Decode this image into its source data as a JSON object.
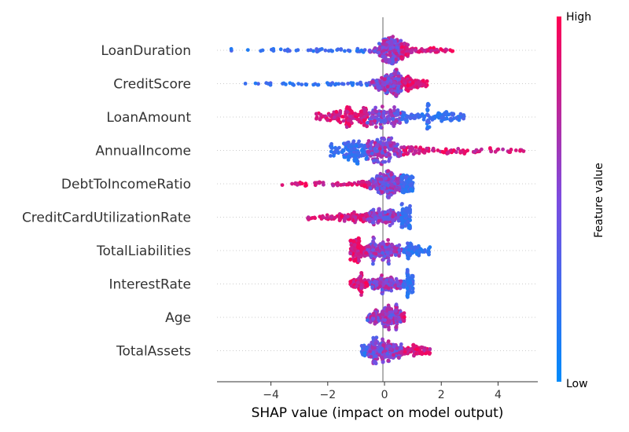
{
  "chart_data": {
    "type": "scatter",
    "subtype": "shap-beeswarm",
    "xlabel": "SHAP value (impact on model output)",
    "xlim": [
      -5.9,
      5.4
    ],
    "xticks": [
      -4,
      -2,
      0,
      2,
      4
    ],
    "xtick_labels": [
      "−4",
      "−2",
      "0",
      "2",
      "4"
    ],
    "colorbar": {
      "title": "Feature value",
      "high_label": "High",
      "low_label": "Low",
      "low_color": "#008bfb",
      "high_color": "#ff0052"
    },
    "features": [
      {
        "name": "LoanDuration",
        "min": -5.4,
        "max": 2.4,
        "low_side": "negative",
        "core": [
          -0.3,
          0.6
        ],
        "mode": 0.3
      },
      {
        "name": "CreditScore",
        "min": -4.9,
        "max": 1.5,
        "low_side": "negative",
        "core": [
          -0.2,
          0.8
        ],
        "mode": 0.3
      },
      {
        "name": "LoanAmount",
        "min": -2.4,
        "max": 2.8,
        "low_side": "positive",
        "core": [
          -1.2,
          1.5
        ],
        "mode": -0.5
      },
      {
        "name": "AnnualIncome",
        "min": -1.9,
        "max": 4.9,
        "low_side": "negative",
        "core": [
          -0.9,
          1.2
        ],
        "mode": -0.5
      },
      {
        "name": "DebtToIncomeRatio",
        "min": -3.6,
        "max": 1.0,
        "low_side": "positive",
        "core": [
          -0.5,
          0.6
        ],
        "mode": 0.2
      },
      {
        "name": "CreditCardUtilizationRate",
        "min": -2.7,
        "max": 0.9,
        "low_side": "positive",
        "core": [
          -1.0,
          0.6
        ],
        "mode": 0.2
      },
      {
        "name": "TotalLiabilities",
        "min": -1.2,
        "max": 1.6,
        "low_side": "positive",
        "core": [
          -0.9,
          0.8
        ],
        "mode": -0.5
      },
      {
        "name": "InterestRate",
        "min": -1.2,
        "max": 1.0,
        "low_side": "positive",
        "core": [
          -0.8,
          0.8
        ],
        "mode": 0.0
      },
      {
        "name": "Age",
        "min": -0.6,
        "max": 0.7,
        "low_side": "negative",
        "core": [
          -0.3,
          0.4
        ],
        "mode": 0.1
      },
      {
        "name": "TotalAssets",
        "min": -0.8,
        "max": 1.6,
        "low_side": "negative",
        "core": [
          -0.3,
          1.0
        ],
        "mode": 0.0
      }
    ]
  }
}
